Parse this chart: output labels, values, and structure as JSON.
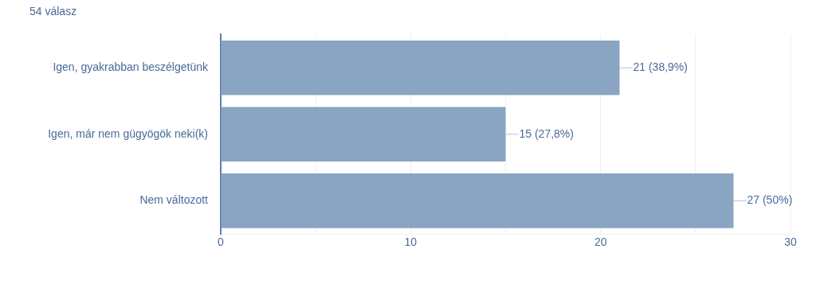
{
  "chart_data": {
    "type": "bar",
    "orientation": "horizontal",
    "title": "54 válasz",
    "categories": [
      "Igen, gyakrabban beszélgetünk",
      "Igen, már nem gügyögök neki(k)",
      "Nem változott"
    ],
    "values": [
      21,
      15,
      27
    ],
    "color": "#8aa4c3",
    "value_labels": [
      "21 (38,9%)",
      "15 (27,8%)",
      "27 (50%)"
    ],
    "xlim": [
      0,
      30
    ],
    "xticks": [
      0,
      {
        "value": 5,
        "label": null
      },
      10,
      {
        "value": 15,
        "label": null
      },
      20,
      {
        "value": 25,
        "label": null
      },
      30
    ],
    "grid": "x",
    "legend": false
  }
}
